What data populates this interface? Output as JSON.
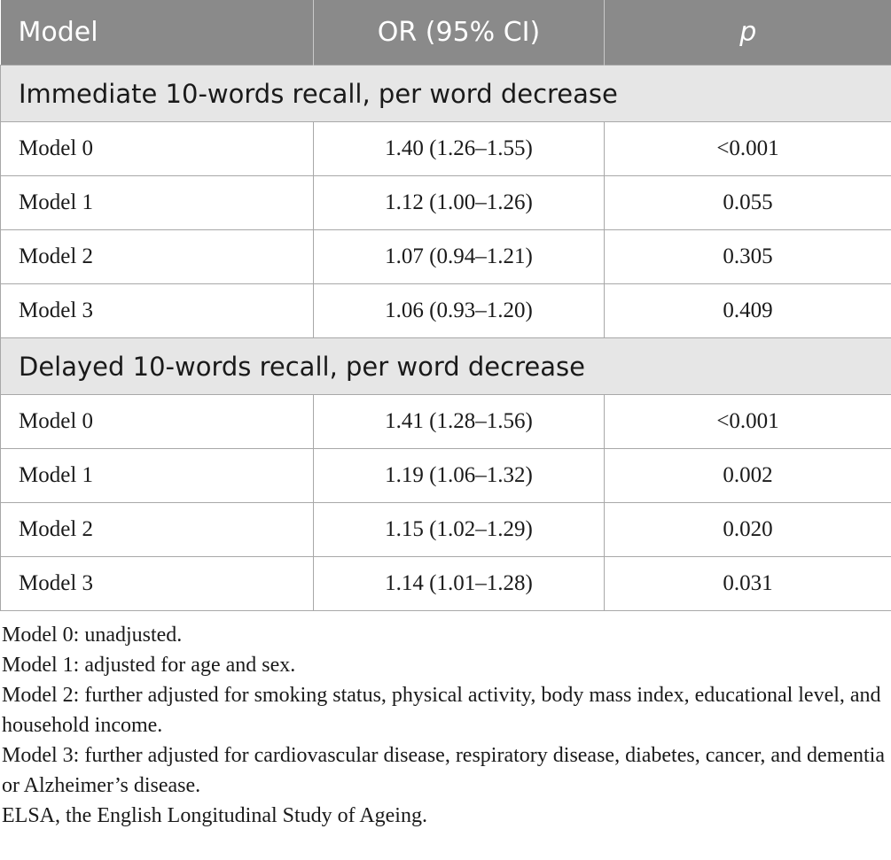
{
  "table": {
    "headers": [
      "Model",
      "OR (95% CI)",
      "p"
    ],
    "sections": [
      {
        "title": "Immediate 10-words recall, per word decrease",
        "rows": [
          {
            "model": "Model 0",
            "or": "1.40 (1.26–1.55)",
            "p": "<0.001"
          },
          {
            "model": "Model 1",
            "or": "1.12 (1.00–1.26)",
            "p": "0.055"
          },
          {
            "model": "Model 2",
            "or": "1.07 (0.94–1.21)",
            "p": "0.305"
          },
          {
            "model": "Model 3",
            "or": "1.06 (0.93–1.20)",
            "p": "0.409"
          }
        ]
      },
      {
        "title": "Delayed 10-words recall, per word decrease",
        "rows": [
          {
            "model": "Model 0",
            "or": "1.41 (1.28–1.56)",
            "p": "<0.001"
          },
          {
            "model": "Model 1",
            "or": "1.19 (1.06–1.32)",
            "p": "0.002"
          },
          {
            "model": "Model 2",
            "or": "1.15 (1.02–1.29)",
            "p": "0.020"
          },
          {
            "model": "Model 3",
            "or": "1.14 (1.01–1.28)",
            "p": "0.031"
          }
        ]
      }
    ]
  },
  "notes": [
    "Model 0: unadjusted.",
    "Model 1: adjusted for age and sex.",
    "Model 2: further adjusted for smoking status, physical activity, body mass index, educational level, and household income.",
    "Model 3: further adjusted for cardiovascular disease, respiratory disease, diabetes, cancer, and dementia or Alzheimer’s disease.",
    "ELSA, the English Longitudinal Study of Ageing."
  ],
  "colors": {
    "header_bg": "#8a8a8a",
    "section_bg": "#e6e6e6",
    "border": "#a8a8a8"
  }
}
